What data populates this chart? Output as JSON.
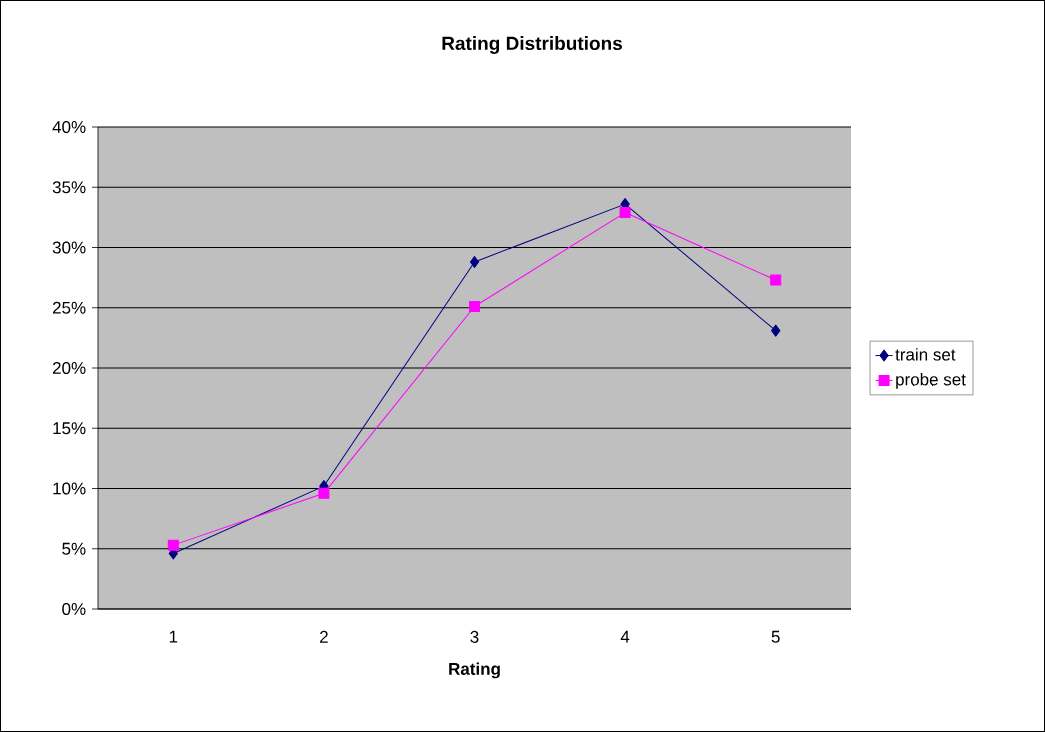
{
  "chart_data": {
    "type": "line",
    "title": "Rating Distributions",
    "xlabel": "Rating",
    "categories": [
      "1",
      "2",
      "3",
      "4",
      "5"
    ],
    "series": [
      {
        "name": "train set",
        "color": "#000080",
        "marker": "diamond",
        "values": [
          4.6,
          10.2,
          28.8,
          33.6,
          23.1
        ]
      },
      {
        "name": "probe set",
        "color": "#ff00ff",
        "marker": "square",
        "values": [
          5.3,
          9.6,
          25.1,
          32.9,
          27.3
        ]
      }
    ],
    "ylim": [
      0,
      40
    ],
    "yticks": [
      {
        "value": 0,
        "label": "0%"
      },
      {
        "value": 5,
        "label": "5%"
      },
      {
        "value": 10,
        "label": "10%"
      },
      {
        "value": 15,
        "label": "15%"
      },
      {
        "value": 20,
        "label": "20%"
      },
      {
        "value": 25,
        "label": "25%"
      },
      {
        "value": 30,
        "label": "30%"
      },
      {
        "value": 35,
        "label": "35%"
      },
      {
        "value": 40,
        "label": "40%"
      }
    ],
    "grid": "y",
    "legend": "right",
    "line_style": "solid"
  }
}
